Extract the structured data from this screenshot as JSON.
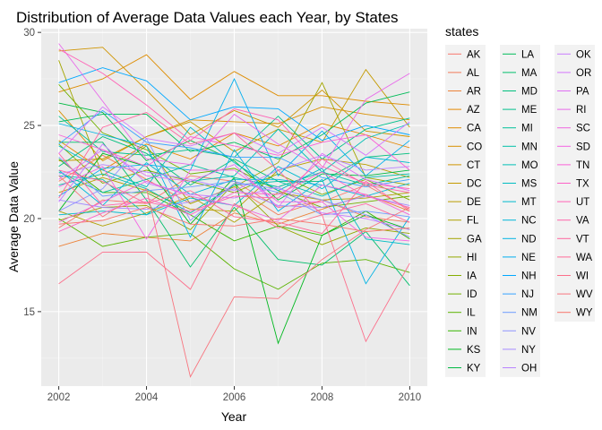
{
  "chart_data": {
    "type": "line",
    "title": "Distribution of Average Data Values each Year, by States",
    "xlabel": "Year",
    "ylabel": "Average Data Value",
    "xlim": [
      2001.6,
      2010.4
    ],
    "ylim": [
      11.0,
      30.2
    ],
    "x_ticks": [
      2002,
      2004,
      2006,
      2008,
      2010
    ],
    "y_ticks": [
      15,
      20,
      25,
      30
    ],
    "grid": true,
    "legend_title": "states",
    "legend_placement": "right",
    "x": [
      2002,
      2003,
      2004,
      2005,
      2006,
      2007,
      2008,
      2009,
      2010
    ],
    "series": [
      {
        "name": "AK",
        "color": "#F8766D",
        "values": [
          19.5,
          21.0,
          20.8,
          22.3,
          22.0,
          20.6,
          20.9,
          21.8,
          20.5
        ]
      },
      {
        "name": "AL",
        "color": "#F37B59",
        "values": [
          22.0,
          23.4,
          22.1,
          20.8,
          21.7,
          20.2,
          21.0,
          20.1,
          19.8
        ]
      },
      {
        "name": "AR",
        "color": "#EC8239",
        "values": [
          18.5,
          19.2,
          19.0,
          18.8,
          20.3,
          19.7,
          20.5,
          21.3,
          20.4
        ]
      },
      {
        "name": "AZ",
        "color": "#E58700",
        "values": [
          24.2,
          22.6,
          24.0,
          23.2,
          24.6,
          23.9,
          25.1,
          24.5,
          23.8
        ]
      },
      {
        "name": "CA",
        "color": "#DE8C00",
        "values": [
          26.8,
          27.5,
          28.8,
          26.4,
          27.9,
          26.6,
          26.6,
          26.3,
          26.1
        ]
      },
      {
        "name": "CO",
        "color": "#D89000",
        "values": [
          25.8,
          23.1,
          24.4,
          25.3,
          25.2,
          25.1,
          26.0,
          25.6,
          25.3
        ]
      },
      {
        "name": "CT",
        "color": "#CF9400",
        "values": [
          29.0,
          29.2,
          26.9,
          24.5,
          25.8,
          24.9,
          26.9,
          24.7,
          24.4
        ]
      },
      {
        "name": "DC",
        "color": "#C49A00",
        "values": [
          23.1,
          23.2,
          24.4,
          25.2,
          23.6,
          24.8,
          24.1,
          28.0,
          24.9
        ]
      },
      {
        "name": "DE",
        "color": "#BB9D00",
        "values": [
          21.4,
          22.2,
          21.5,
          20.5,
          20.4,
          22.6,
          23.2,
          22.9,
          22.2
        ]
      },
      {
        "name": "FL",
        "color": "#AFA100",
        "values": [
          20.4,
          19.6,
          20.3,
          21.2,
          19.8,
          21.4,
          21.0,
          21.1,
          21.4
        ]
      },
      {
        "name": "GA",
        "color": "#A3A500",
        "values": [
          28.5,
          22.3,
          23.9,
          20.8,
          21.7,
          23.0,
          27.3,
          22.2,
          21.8
        ]
      },
      {
        "name": "HI",
        "color": "#94A900",
        "values": [
          19.9,
          20.6,
          20.7,
          19.4,
          21.9,
          19.6,
          18.6,
          19.5,
          19.2
        ]
      },
      {
        "name": "IA",
        "color": "#85AD00",
        "values": [
          24.0,
          21.9,
          22.6,
          22.0,
          21.4,
          22.4,
          21.3,
          22.1,
          21.0
        ]
      },
      {
        "name": "ID",
        "color": "#72B000",
        "values": [
          27.2,
          24.6,
          23.7,
          22.4,
          22.7,
          21.5,
          20.6,
          20.9,
          21.2
        ]
      },
      {
        "name": "IL",
        "color": "#5BB300",
        "values": [
          20.0,
          18.5,
          19.0,
          19.2,
          17.3,
          16.2,
          17.6,
          17.8,
          17.1
        ]
      },
      {
        "name": "IN",
        "color": "#39B600",
        "values": [
          23.2,
          21.4,
          21.4,
          20.2,
          18.8,
          19.6,
          19.1,
          20.4,
          18.9
        ]
      },
      {
        "name": "KS",
        "color": "#00B81F",
        "values": [
          20.4,
          23.5,
          22.8,
          19.7,
          22.2,
          13.3,
          19.1,
          20.2,
          19.4
        ]
      },
      {
        "name": "KY",
        "color": "#00BA42",
        "values": [
          26.2,
          25.7,
          23.1,
          24.2,
          23.1,
          21.0,
          22.4,
          22.3,
          22.6
        ]
      },
      {
        "name": "LA",
        "color": "#00BC59",
        "values": [
          25.2,
          25.6,
          25.6,
          23.6,
          24.1,
          23.2,
          24.5,
          26.2,
          26.8
        ]
      },
      {
        "name": "MA",
        "color": "#00BE6C",
        "values": [
          24.1,
          24.1,
          21.0,
          17.4,
          20.6,
          17.8,
          17.5,
          19.3,
          16.4
        ]
      },
      {
        "name": "MD",
        "color": "#00BF7D",
        "values": [
          22.8,
          24.4,
          23.5,
          21.8,
          23.2,
          22.0,
          22.0,
          23.3,
          23.5
        ]
      },
      {
        "name": "ME",
        "color": "#00C08B",
        "values": [
          25.5,
          23.6,
          23.4,
          23.7,
          23.3,
          25.5,
          23.2,
          24.8,
          25.4
        ]
      },
      {
        "name": "MI",
        "color": "#00C19A",
        "values": [
          22.5,
          21.4,
          22.1,
          22.9,
          22.2,
          21.7,
          22.5,
          21.8,
          22.3
        ]
      },
      {
        "name": "MN",
        "color": "#00C0A8",
        "values": [
          21.8,
          22.4,
          21.6,
          20.3,
          21.8,
          22.0,
          21.2,
          22.2,
          22.4
        ]
      },
      {
        "name": "MO",
        "color": "#00BFB5",
        "values": [
          22.3,
          22.1,
          20.2,
          22.0,
          22.3,
          24.8,
          22.5,
          24.3,
          25.1
        ]
      },
      {
        "name": "MS",
        "color": "#00BDC2",
        "values": [
          23.9,
          22.6,
          21.7,
          24.9,
          23.0,
          21.5,
          22.7,
          18.9,
          18.6
        ]
      },
      {
        "name": "MT",
        "color": "#00BACE",
        "values": [
          20.2,
          20.4,
          20.2,
          21.1,
          20.7,
          22.8,
          21.6,
          23.3,
          23.0
        ]
      },
      {
        "name": "NC",
        "color": "#00B7D9",
        "values": [
          22.6,
          20.7,
          23.0,
          21.3,
          22.1,
          22.1,
          21.8,
          21.2,
          21.9
        ]
      },
      {
        "name": "ND",
        "color": "#00B3E4",
        "values": [
          25.1,
          24.5,
          23.9,
          19.0,
          23.7,
          20.4,
          22.1,
          16.5,
          20.1
        ]
      },
      {
        "name": "NE",
        "color": "#00AEEF",
        "values": [
          21.2,
          22.7,
          22.9,
          22.6,
          27.5,
          22.3,
          24.7,
          22.3,
          24.2
        ]
      },
      {
        "name": "NH",
        "color": "#00A8FF",
        "values": [
          27.3,
          28.1,
          27.4,
          25.3,
          26.0,
          25.9,
          24.2,
          25.0,
          24.5
        ]
      },
      {
        "name": "NJ",
        "color": "#35A2FF",
        "values": [
          24.0,
          25.8,
          24.1,
          23.8,
          23.3,
          23.3,
          22.2,
          21.7,
          22.1
        ]
      },
      {
        "name": "NM",
        "color": "#6E9CFF",
        "values": [
          23.3,
          21.2,
          21.5,
          21.7,
          22.0,
          21.4,
          20.2,
          20.4,
          20.1
        ]
      },
      {
        "name": "NV",
        "color": "#8F95FF",
        "values": [
          20.4,
          21.6,
          24.3,
          19.9,
          21.9,
          21.6,
          21.0,
          20.2,
          19.0
        ]
      },
      {
        "name": "NY",
        "color": "#A58AFF",
        "values": [
          21.0,
          20.6,
          20.5,
          20.9,
          21.6,
          20.7,
          20.6,
          21.2,
          20.7
        ]
      },
      {
        "name": "OH",
        "color": "#B983FF",
        "values": [
          22.4,
          22.9,
          22.5,
          22.1,
          21.5,
          22.6,
          23.4,
          22.6,
          22.8
        ]
      },
      {
        "name": "OK",
        "color": "#C77CFF",
        "values": [
          20.9,
          24.0,
          21.9,
          21.3,
          21.1,
          21.7,
          20.3,
          20.0,
          19.4
        ]
      },
      {
        "name": "OR",
        "color": "#D475FC",
        "values": [
          23.5,
          26.0,
          24.3,
          23.9,
          24.6,
          23.5,
          24.9,
          23.4,
          25.2
        ]
      },
      {
        "name": "PA",
        "color": "#DF6EF4",
        "values": [
          22.1,
          23.7,
          22.3,
          22.0,
          22.9,
          20.6,
          23.5,
          22.1,
          21.5
        ]
      },
      {
        "name": "RI",
        "color": "#E86AEA",
        "values": [
          29.4,
          26.3,
          23.2,
          22.9,
          25.6,
          24.0,
          22.7,
          26.4,
          27.8
        ]
      },
      {
        "name": "SC",
        "color": "#F066E0",
        "values": [
          19.8,
          20.9,
          22.0,
          21.2,
          20.7,
          19.9,
          21.8,
          21.3,
          20.2
        ]
      },
      {
        "name": "SD",
        "color": "#F564E3",
        "values": [
          21.7,
          22.8,
          18.9,
          22.6,
          22.6,
          20.9,
          20.9,
          19.0,
          18.8
        ]
      },
      {
        "name": "TN",
        "color": "#FB61D7",
        "values": [
          24.5,
          23.7,
          22.8,
          24.4,
          23.9,
          23.4,
          24.1,
          24.5,
          22.6
        ]
      },
      {
        "name": "TX",
        "color": "#FD61C7",
        "values": [
          19.3,
          20.3,
          21.1,
          20.2,
          21.4,
          21.3,
          22.5,
          21.2,
          20.6
        ]
      },
      {
        "name": "UT",
        "color": "#FF63B6",
        "values": [
          29.1,
          27.8,
          26.1,
          24.2,
          25.9,
          25.3,
          22.8,
          21.9,
          21.6
        ]
      },
      {
        "name": "VA",
        "color": "#FF65AA",
        "values": [
          23.5,
          20.7,
          20.9,
          20.4,
          21.2,
          21.1,
          23.2,
          21.8,
          21.4
        ]
      },
      {
        "name": "VT",
        "color": "#FF679F",
        "values": [
          21.1,
          24.9,
          25.7,
          24.0,
          24.6,
          22.6,
          20.2,
          20.8,
          19.8
        ]
      },
      {
        "name": "WA",
        "color": "#FF6A98",
        "values": [
          22.6,
          22.0,
          20.8,
          21.5,
          20.1,
          19.8,
          19.2,
          22.0,
          20.4
        ]
      },
      {
        "name": "WI",
        "color": "#FC6F8B",
        "values": [
          16.5,
          18.2,
          18.2,
          16.2,
          20.8,
          19.5,
          20.2,
          13.4,
          17.6
        ]
      },
      {
        "name": "WV",
        "color": "#F8757F",
        "values": [
          22.3,
          20.1,
          21.6,
          11.5,
          15.8,
          15.7,
          17.8,
          19.4,
          20.6
        ]
      },
      {
        "name": "WY",
        "color": "#F8766D",
        "values": [
          19.7,
          19.9,
          20.6,
          19.7,
          19.6,
          20.0,
          19.7,
          19.3,
          19.5
        ]
      }
    ]
  }
}
